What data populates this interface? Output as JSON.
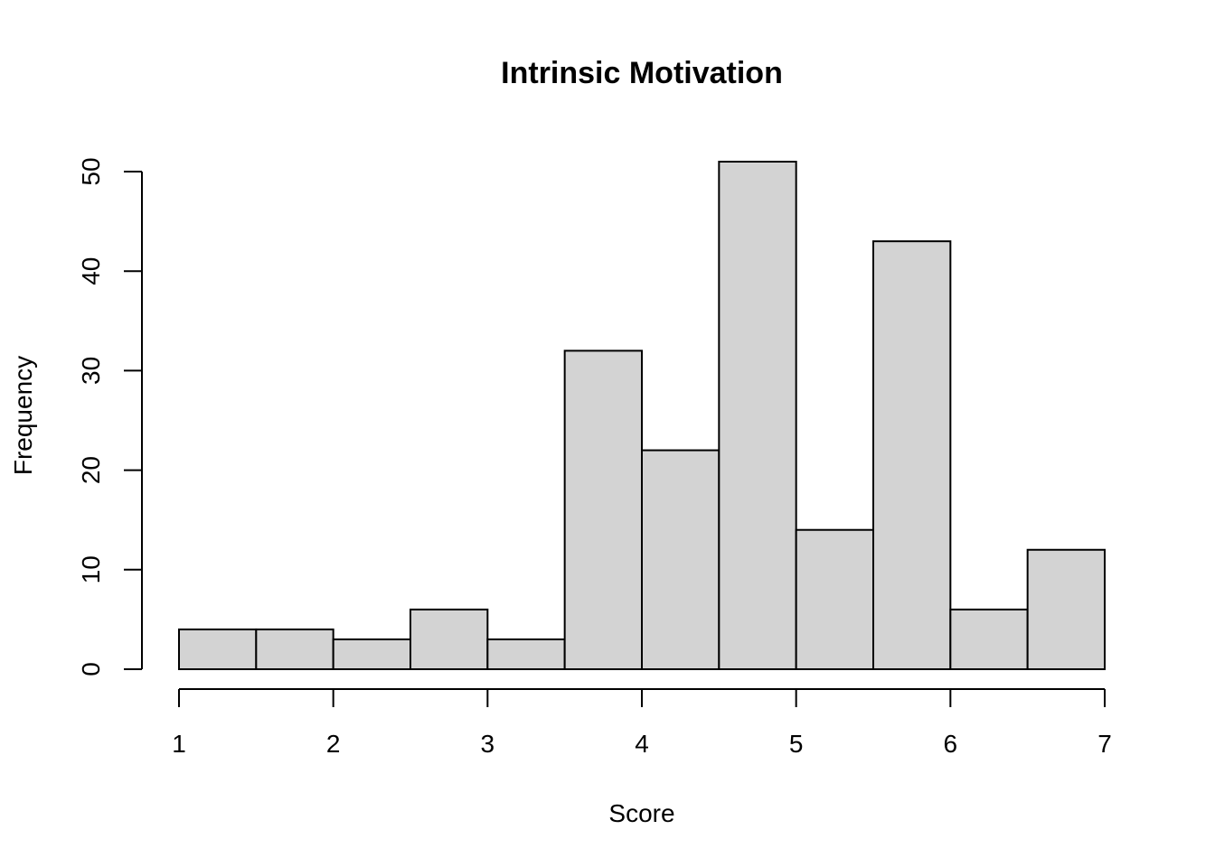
{
  "chart_data": {
    "type": "bar",
    "subtype": "histogram",
    "title": "Intrinsic Motivation",
    "xlabel": "Score",
    "ylabel": "Frequency",
    "bin_edges": [
      1,
      1.5,
      2,
      2.5,
      3,
      3.5,
      4,
      4.5,
      5,
      5.5,
      6,
      6.5,
      7
    ],
    "values": [
      4,
      4,
      3,
      6,
      3,
      32,
      22,
      51,
      14,
      43,
      6,
      12
    ],
    "xlim": [
      1,
      7
    ],
    "ylim": [
      0,
      51
    ],
    "x_ticks": [
      1,
      2,
      3,
      4,
      5,
      6,
      7
    ],
    "y_ticks": [
      0,
      10,
      20,
      30,
      40,
      50
    ],
    "grid": false,
    "legend": "none",
    "bar_fill": "#d3d3d3",
    "bar_stroke": "#000000"
  }
}
